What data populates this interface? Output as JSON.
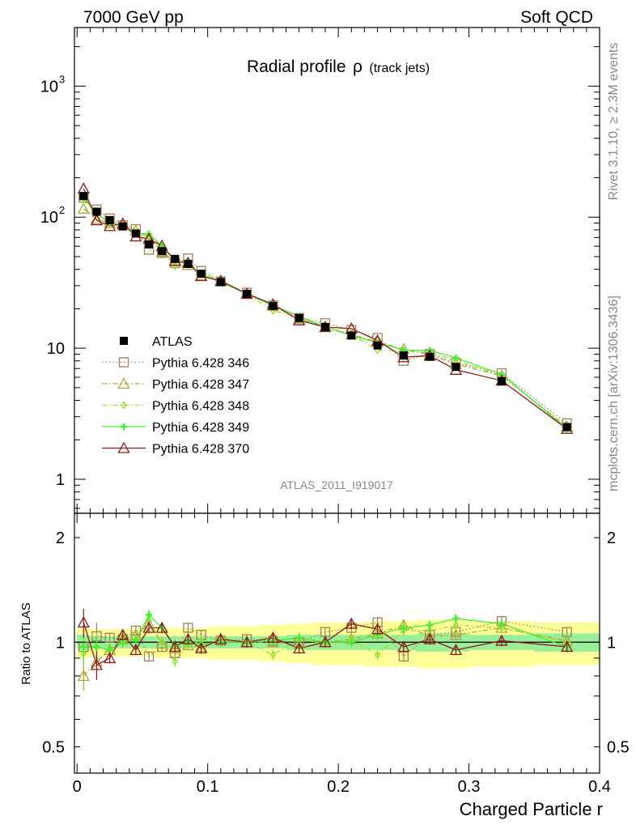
{
  "header": {
    "left": "7000 GeV pp",
    "right": "Soft QCD"
  },
  "side_labels": {
    "rivet": "Rivet 3.1.10, ≥ 2.3M events",
    "mcplots": "mcplots.cern.ch [arXiv:1306.3436]"
  },
  "chart_data": {
    "type": "scatter",
    "title_main": "Radial profile",
    "title_symbol": "ρ",
    "title_sub": "(track jets)",
    "analysis": "ATLAS_2011_I919017",
    "xlabel": "Charged Particle r",
    "ratio_ylabel": "Ratio to ATLAS",
    "xlim": [
      -0.002,
      0.4
    ],
    "main_ylim": [
      0.55,
      2800
    ],
    "ratio_ylim": [
      0.42,
      2.35
    ],
    "main_yscale": "log",
    "ratio_yscale": "log",
    "x_ticks": [
      {
        "v": 0,
        "t": "0"
      },
      {
        "v": 0.1,
        "t": "0.1"
      },
      {
        "v": 0.2,
        "t": "0.2"
      },
      {
        "v": 0.3,
        "t": "0.3"
      },
      {
        "v": 0.4,
        "t": "0.4"
      }
    ],
    "main_y_ticks": [
      {
        "v": 1,
        "t": "1"
      },
      {
        "v": 10,
        "t": "10"
      },
      {
        "v": 100,
        "t": "10",
        "exp": "2"
      },
      {
        "v": 1000,
        "t": "10",
        "exp": "3"
      }
    ],
    "ratio_y_ticks": [
      {
        "v": 0.5,
        "t": "0.5"
      },
      {
        "v": 1,
        "t": "1"
      },
      {
        "v": 2,
        "t": "2"
      }
    ],
    "legend_position": "center-left",
    "x": [
      0.005,
      0.015,
      0.025,
      0.035,
      0.045,
      0.055,
      0.065,
      0.075,
      0.085,
      0.095,
      0.11,
      0.13,
      0.15,
      0.17,
      0.19,
      0.21,
      0.23,
      0.25,
      0.27,
      0.29,
      0.325,
      0.375
    ],
    "bin_width": [
      0.01,
      0.01,
      0.01,
      0.01,
      0.01,
      0.01,
      0.01,
      0.01,
      0.01,
      0.01,
      0.02,
      0.02,
      0.02,
      0.02,
      0.02,
      0.02,
      0.02,
      0.02,
      0.02,
      0.02,
      0.05,
      0.05
    ],
    "data": {
      "name": "ATLAS",
      "color": "#000000",
      "values": [
        145,
        110,
        95,
        85,
        75,
        62,
        55,
        48,
        44,
        37,
        32,
        26,
        21,
        17,
        14.5,
        12.5,
        10.5,
        8.8,
        8.6,
        7.2,
        5.6,
        2.5
      ],
      "err_inner": [
        0.05,
        0.04,
        0.04,
        0.04,
        0.04,
        0.04,
        0.04,
        0.04,
        0.04,
        0.04,
        0.04,
        0.04,
        0.04,
        0.05,
        0.05,
        0.05,
        0.05,
        0.05,
        0.06,
        0.06,
        0.05,
        0.06
      ],
      "err_outer": [
        0.1,
        0.09,
        0.09,
        0.09,
        0.09,
        0.09,
        0.1,
        0.1,
        0.1,
        0.1,
        0.11,
        0.11,
        0.12,
        0.13,
        0.14,
        0.14,
        0.15,
        0.15,
        0.16,
        0.16,
        0.15,
        0.14
      ]
    },
    "series": [
      {
        "name": "Pythia 6.428 346",
        "color": "#a0825a",
        "marker": "square",
        "dash": "1.5,3",
        "ratio": [
          0.97,
          1.04,
          1.03,
          1.02,
          1.08,
          0.91,
          0.97,
          0.93,
          1.1,
          1.05,
          1.01,
          1.02,
          1.01,
          1.0,
          1.07,
          1.1,
          1.14,
          0.91,
          1.05,
          1.07,
          1.15,
          1.07
        ]
      },
      {
        "name": "Pythia 6.428 347",
        "color": "#aaaa33",
        "marker": "triangle",
        "dash": "6,3,1.5,3",
        "ratio": [
          0.8,
          0.88,
          0.95,
          1.02,
          1.05,
          1.13,
          0.99,
          0.96,
          0.98,
          0.97,
          1.02,
          1.0,
          1.0,
          0.99,
          1.0,
          1.02,
          1.06,
          1.12,
          1.04,
          1.05,
          1.1,
          1.01
        ]
      },
      {
        "name": "Pythia 6.428 348",
        "color": "#99dd33",
        "marker": "diamond",
        "dash": "6,3,1.5,3",
        "ratio": [
          0.93,
          0.97,
          0.95,
          1.0,
          1.02,
          1.15,
          1.0,
          0.88,
          0.98,
          1.01,
          1.03,
          1.0,
          0.92,
          1.02,
          0.99,
          1.02,
          0.92,
          1.08,
          1.08,
          1.12,
          1.1,
          1.0
        ]
      },
      {
        "name": "Pythia 6.428 349",
        "color": "#44ee33",
        "marker": "cross",
        "dash": "",
        "ratio": [
          0.97,
          0.97,
          0.95,
          1.0,
          1.01,
          1.2,
          1.1,
          0.98,
          1.0,
          0.99,
          1.0,
          1.0,
          1.01,
          1.03,
          1.0,
          1.0,
          1.05,
          1.1,
          1.12,
          1.17,
          1.13,
          0.97
        ]
      },
      {
        "name": "Pythia 6.428 370",
        "color": "#8b1a1a",
        "marker": "triangle",
        "dash": "",
        "ratio": [
          1.14,
          0.86,
          0.9,
          1.05,
          0.95,
          1.1,
          1.1,
          0.97,
          1.02,
          0.96,
          1.02,
          1.0,
          1.03,
          0.96,
          1.0,
          1.13,
          1.09,
          0.97,
          1.02,
          0.95,
          1.01,
          0.97
        ]
      }
    ]
  }
}
